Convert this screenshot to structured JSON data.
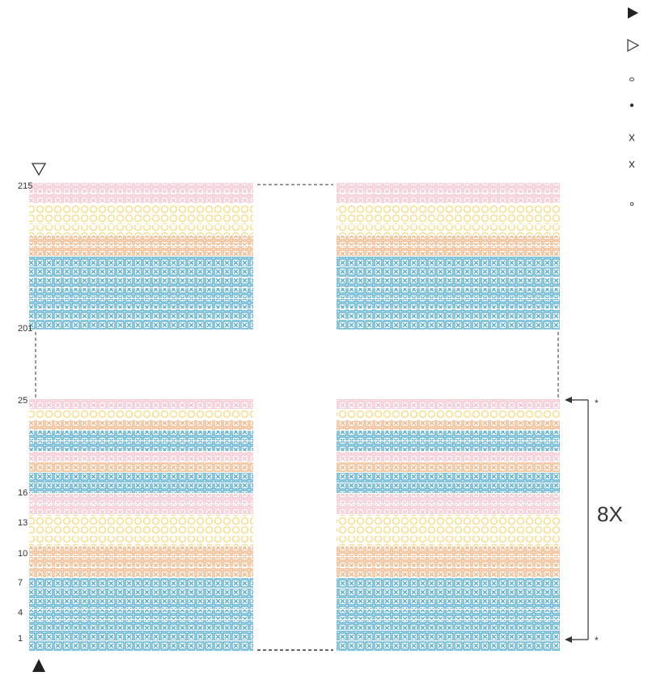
{
  "row_labels": [
    {
      "text": "215",
      "row": 215
    },
    {
      "text": "201",
      "row": 201
    },
    {
      "text": "25",
      "row": 25
    },
    {
      "text": "16",
      "row": 16
    },
    {
      "text": "13",
      "row": 13
    },
    {
      "text": "10",
      "row": 10
    },
    {
      "text": "7",
      "row": 7
    },
    {
      "text": "4",
      "row": 4
    },
    {
      "text": "1",
      "row": 1
    }
  ],
  "repeat": {
    "label": "8X",
    "marker": "*"
  },
  "key_symbols": [
    "filled-triangle-right",
    "open-triangle-right",
    "open-circle",
    "filled-dot",
    "x-stitch",
    "x-stitch",
    "small-circle"
  ],
  "colors": {
    "pink": "#f3b8c4",
    "yellow": "#f6df8e",
    "orange": "#eea871",
    "blue": "#3a9fc7",
    "line": "#333333"
  }
}
